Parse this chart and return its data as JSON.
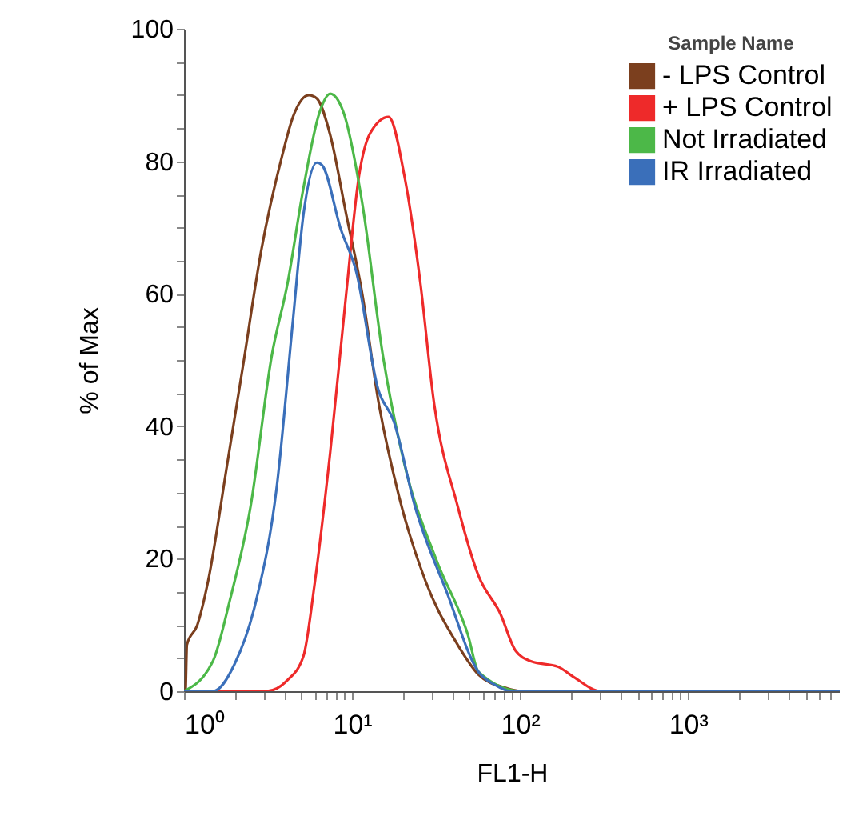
{
  "chart_data": {
    "type": "line",
    "xlabel": "FL1-H",
    "ylabel": "% of Max",
    "legend_title": "Sample Name",
    "legend": "top right",
    "log": "x",
    "grid": false,
    "marker": "none",
    "line_style": "solid",
    "xlim": [
      1,
      8000
    ],
    "ylim": [
      0,
      100
    ],
    "xticks": [
      {
        "value": 1,
        "label": "10⁰"
      },
      {
        "value": 2,
        "label": null
      },
      {
        "value": 3,
        "label": null
      },
      {
        "value": 4,
        "label": null
      },
      {
        "value": 5,
        "label": null
      },
      {
        "value": 6,
        "label": null
      },
      {
        "value": 7,
        "label": null
      },
      {
        "value": 8,
        "label": null
      },
      {
        "value": 9,
        "label": null
      },
      {
        "value": 10,
        "label": "10¹"
      },
      {
        "value": 20,
        "label": null
      },
      {
        "value": 30,
        "label": null
      },
      {
        "value": 40,
        "label": null
      },
      {
        "value": 50,
        "label": null
      },
      {
        "value": 60,
        "label": null
      },
      {
        "value": 70,
        "label": null
      },
      {
        "value": 80,
        "label": null
      },
      {
        "value": 90,
        "label": null
      },
      {
        "value": 100,
        "label": "10²"
      },
      {
        "value": 200,
        "label": null
      },
      {
        "value": 300,
        "label": null
      },
      {
        "value": 400,
        "label": null
      },
      {
        "value": 500,
        "label": null
      },
      {
        "value": 600,
        "label": null
      },
      {
        "value": 700,
        "label": null
      },
      {
        "value": 800,
        "label": null
      },
      {
        "value": 900,
        "label": null
      },
      {
        "value": 1000,
        "label": "10³"
      },
      {
        "value": 2000,
        "label": null
      },
      {
        "value": 3000,
        "label": null
      },
      {
        "value": 4000,
        "label": null
      },
      {
        "value": 5000,
        "label": null
      },
      {
        "value": 6000,
        "label": null
      },
      {
        "value": 7000,
        "label": null
      }
    ],
    "yticks": [
      0,
      {
        "value": 5,
        "label": null
      },
      {
        "value": 10,
        "label": null
      },
      {
        "value": 15,
        "label": null
      },
      20,
      {
        "value": 25,
        "label": null
      },
      {
        "value": 30,
        "label": null
      },
      {
        "value": 35,
        "label": null
      },
      40,
      {
        "value": 45,
        "label": null
      },
      {
        "value": 50,
        "label": null
      },
      {
        "value": 55,
        "label": null
      },
      60,
      {
        "value": 65,
        "label": null
      },
      {
        "value": 70,
        "label": null
      },
      {
        "value": 75,
        "label": null
      },
      80,
      {
        "value": 85,
        "label": null
      },
      {
        "value": 90,
        "label": null
      },
      {
        "value": 95,
        "label": null
      },
      100
    ],
    "series": [
      {
        "name": "- LPS Control",
        "color": "#7b3f1e",
        "x": [
          1,
          1.02,
          1.04,
          1.2,
          1.39,
          1.8,
          2.24,
          2.88,
          3.85,
          4.45,
          5.53,
          6.17,
          7.41,
          9.23,
          11.5,
          14.3,
          19,
          27.4,
          42.6,
          56.7,
          81.9,
          101,
          8000
        ],
        "values": [
          0,
          0,
          7,
          10,
          16.6,
          34,
          49,
          66.5,
          81,
          86.7,
          90,
          89.5,
          84,
          72,
          60,
          44,
          29.5,
          16.6,
          7,
          2.5,
          0.5,
          0,
          0
        ]
      },
      {
        "name": "+ LPS Control",
        "color": "#ee2a2a",
        "x": [
          1,
          3.09,
          4.14,
          5.14,
          5.96,
          7.41,
          9.23,
          11,
          12.8,
          16.5,
          20.5,
          25.5,
          30.6,
          42.6,
          56.7,
          76.1,
          94.3,
          117,
          168,
          210,
          302,
          8000
        ],
        "values": [
          0,
          0,
          1.7,
          5.3,
          15.8,
          36,
          60,
          77.8,
          84.2,
          86.7,
          77.8,
          61.7,
          44,
          27.9,
          17.4,
          11.8,
          6.1,
          4.5,
          3.7,
          2.1,
          0,
          0
        ]
      },
      {
        "name": "Not Irradiated",
        "color": "#4cb848",
        "x": [
          1,
          1.49,
          1.86,
          2.49,
          3.32,
          4.14,
          5.14,
          6.41,
          7.41,
          8.89,
          11.5,
          15.3,
          20.5,
          31.8,
          49,
          56.7,
          101,
          8000
        ],
        "values": [
          0,
          4.6,
          13.4,
          27.9,
          50.5,
          61.7,
          76,
          87.4,
          90.2,
          87.4,
          73.7,
          50.5,
          34.3,
          19.8,
          8.5,
          2.9,
          0,
          0
        ]
      },
      {
        "name": "IR Irradiated",
        "color": "#3a6fba",
        "x": [
          1,
          1.49,
          2,
          2.67,
          3.57,
          4.45,
          5.14,
          6.17,
          6.64,
          8.56,
          10.6,
          14.3,
          17.7,
          23.7,
          36.6,
          56.7,
          70.5,
          88,
          8000
        ],
        "values": [
          0,
          0,
          4.1,
          13.4,
          31,
          56,
          72,
          79.8,
          79.4,
          69.8,
          63.3,
          45.6,
          40.8,
          27.9,
          15,
          2.9,
          1,
          0,
          0
        ]
      }
    ]
  }
}
